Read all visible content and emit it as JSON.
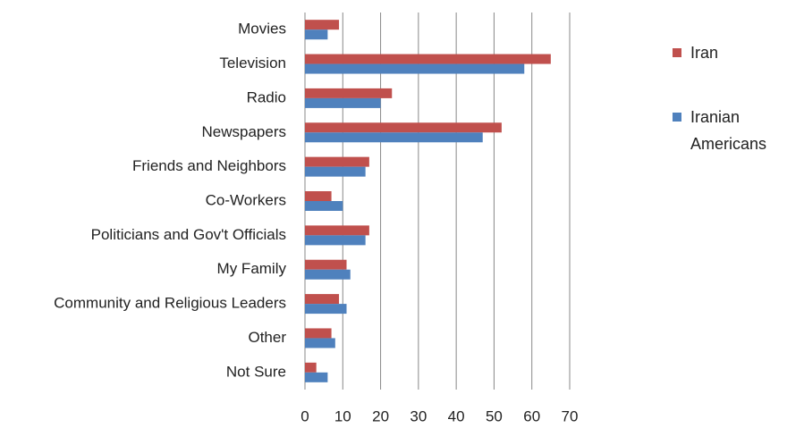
{
  "chart_data": {
    "type": "bar",
    "orientation": "horizontal",
    "categories": [
      "Movies",
      "Television",
      "Radio",
      "Newspapers",
      "Friends and Neighbors",
      "Co-Workers",
      "Politicians and Gov't Officials",
      "My Family",
      "Community and Religious Leaders",
      "Other",
      "Not Sure"
    ],
    "series": [
      {
        "name": "Iran",
        "color": "#c0504d",
        "values": [
          9,
          65,
          23,
          52,
          17,
          7,
          17,
          11,
          9,
          7,
          3
        ]
      },
      {
        "name": "Iranian Americans",
        "color": "#4f81bd",
        "values": [
          6,
          58,
          20,
          47,
          16,
          10,
          16,
          12,
          11,
          8,
          6
        ]
      }
    ],
    "xlim": [
      0,
      70
    ],
    "xticks": [
      0,
      10,
      20,
      30,
      40,
      50,
      60,
      70
    ],
    "grid": true,
    "legend": "right"
  }
}
